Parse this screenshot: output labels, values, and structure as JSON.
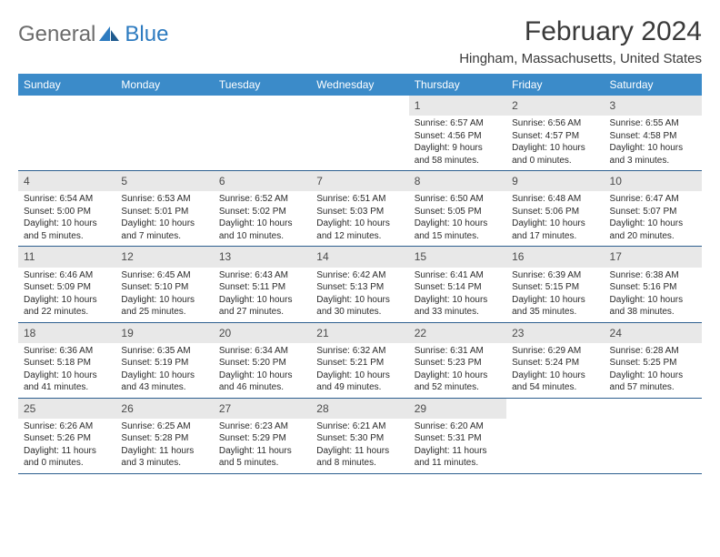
{
  "logo": {
    "main": "General",
    "sub": "Blue"
  },
  "title": "February 2024",
  "location": "Hingham, Massachusetts, United States",
  "colors": {
    "header_bg": "#3b8bc9",
    "header_text": "#ffffff",
    "daynum_bg": "#e8e8e8",
    "row_border": "#2d5f8f",
    "logo_gray": "#6b6b6b",
    "logo_blue": "#2d7bc0"
  },
  "day_headers": [
    "Sunday",
    "Monday",
    "Tuesday",
    "Wednesday",
    "Thursday",
    "Friday",
    "Saturday"
  ],
  "weeks": [
    [
      {
        "n": "",
        "lines": []
      },
      {
        "n": "",
        "lines": []
      },
      {
        "n": "",
        "lines": []
      },
      {
        "n": "",
        "lines": []
      },
      {
        "n": "1",
        "lines": [
          "Sunrise: 6:57 AM",
          "Sunset: 4:56 PM",
          "Daylight: 9 hours",
          "and 58 minutes."
        ]
      },
      {
        "n": "2",
        "lines": [
          "Sunrise: 6:56 AM",
          "Sunset: 4:57 PM",
          "Daylight: 10 hours",
          "and 0 minutes."
        ]
      },
      {
        "n": "3",
        "lines": [
          "Sunrise: 6:55 AM",
          "Sunset: 4:58 PM",
          "Daylight: 10 hours",
          "and 3 minutes."
        ]
      }
    ],
    [
      {
        "n": "4",
        "lines": [
          "Sunrise: 6:54 AM",
          "Sunset: 5:00 PM",
          "Daylight: 10 hours",
          "and 5 minutes."
        ]
      },
      {
        "n": "5",
        "lines": [
          "Sunrise: 6:53 AM",
          "Sunset: 5:01 PM",
          "Daylight: 10 hours",
          "and 7 minutes."
        ]
      },
      {
        "n": "6",
        "lines": [
          "Sunrise: 6:52 AM",
          "Sunset: 5:02 PM",
          "Daylight: 10 hours",
          "and 10 minutes."
        ]
      },
      {
        "n": "7",
        "lines": [
          "Sunrise: 6:51 AM",
          "Sunset: 5:03 PM",
          "Daylight: 10 hours",
          "and 12 minutes."
        ]
      },
      {
        "n": "8",
        "lines": [
          "Sunrise: 6:50 AM",
          "Sunset: 5:05 PM",
          "Daylight: 10 hours",
          "and 15 minutes."
        ]
      },
      {
        "n": "9",
        "lines": [
          "Sunrise: 6:48 AM",
          "Sunset: 5:06 PM",
          "Daylight: 10 hours",
          "and 17 minutes."
        ]
      },
      {
        "n": "10",
        "lines": [
          "Sunrise: 6:47 AM",
          "Sunset: 5:07 PM",
          "Daylight: 10 hours",
          "and 20 minutes."
        ]
      }
    ],
    [
      {
        "n": "11",
        "lines": [
          "Sunrise: 6:46 AM",
          "Sunset: 5:09 PM",
          "Daylight: 10 hours",
          "and 22 minutes."
        ]
      },
      {
        "n": "12",
        "lines": [
          "Sunrise: 6:45 AM",
          "Sunset: 5:10 PM",
          "Daylight: 10 hours",
          "and 25 minutes."
        ]
      },
      {
        "n": "13",
        "lines": [
          "Sunrise: 6:43 AM",
          "Sunset: 5:11 PM",
          "Daylight: 10 hours",
          "and 27 minutes."
        ]
      },
      {
        "n": "14",
        "lines": [
          "Sunrise: 6:42 AM",
          "Sunset: 5:13 PM",
          "Daylight: 10 hours",
          "and 30 minutes."
        ]
      },
      {
        "n": "15",
        "lines": [
          "Sunrise: 6:41 AM",
          "Sunset: 5:14 PM",
          "Daylight: 10 hours",
          "and 33 minutes."
        ]
      },
      {
        "n": "16",
        "lines": [
          "Sunrise: 6:39 AM",
          "Sunset: 5:15 PM",
          "Daylight: 10 hours",
          "and 35 minutes."
        ]
      },
      {
        "n": "17",
        "lines": [
          "Sunrise: 6:38 AM",
          "Sunset: 5:16 PM",
          "Daylight: 10 hours",
          "and 38 minutes."
        ]
      }
    ],
    [
      {
        "n": "18",
        "lines": [
          "Sunrise: 6:36 AM",
          "Sunset: 5:18 PM",
          "Daylight: 10 hours",
          "and 41 minutes."
        ]
      },
      {
        "n": "19",
        "lines": [
          "Sunrise: 6:35 AM",
          "Sunset: 5:19 PM",
          "Daylight: 10 hours",
          "and 43 minutes."
        ]
      },
      {
        "n": "20",
        "lines": [
          "Sunrise: 6:34 AM",
          "Sunset: 5:20 PM",
          "Daylight: 10 hours",
          "and 46 minutes."
        ]
      },
      {
        "n": "21",
        "lines": [
          "Sunrise: 6:32 AM",
          "Sunset: 5:21 PM",
          "Daylight: 10 hours",
          "and 49 minutes."
        ]
      },
      {
        "n": "22",
        "lines": [
          "Sunrise: 6:31 AM",
          "Sunset: 5:23 PM",
          "Daylight: 10 hours",
          "and 52 minutes."
        ]
      },
      {
        "n": "23",
        "lines": [
          "Sunrise: 6:29 AM",
          "Sunset: 5:24 PM",
          "Daylight: 10 hours",
          "and 54 minutes."
        ]
      },
      {
        "n": "24",
        "lines": [
          "Sunrise: 6:28 AM",
          "Sunset: 5:25 PM",
          "Daylight: 10 hours",
          "and 57 minutes."
        ]
      }
    ],
    [
      {
        "n": "25",
        "lines": [
          "Sunrise: 6:26 AM",
          "Sunset: 5:26 PM",
          "Daylight: 11 hours",
          "and 0 minutes."
        ]
      },
      {
        "n": "26",
        "lines": [
          "Sunrise: 6:25 AM",
          "Sunset: 5:28 PM",
          "Daylight: 11 hours",
          "and 3 minutes."
        ]
      },
      {
        "n": "27",
        "lines": [
          "Sunrise: 6:23 AM",
          "Sunset: 5:29 PM",
          "Daylight: 11 hours",
          "and 5 minutes."
        ]
      },
      {
        "n": "28",
        "lines": [
          "Sunrise: 6:21 AM",
          "Sunset: 5:30 PM",
          "Daylight: 11 hours",
          "and 8 minutes."
        ]
      },
      {
        "n": "29",
        "lines": [
          "Sunrise: 6:20 AM",
          "Sunset: 5:31 PM",
          "Daylight: 11 hours",
          "and 11 minutes."
        ]
      },
      {
        "n": "",
        "lines": []
      },
      {
        "n": "",
        "lines": []
      }
    ]
  ]
}
